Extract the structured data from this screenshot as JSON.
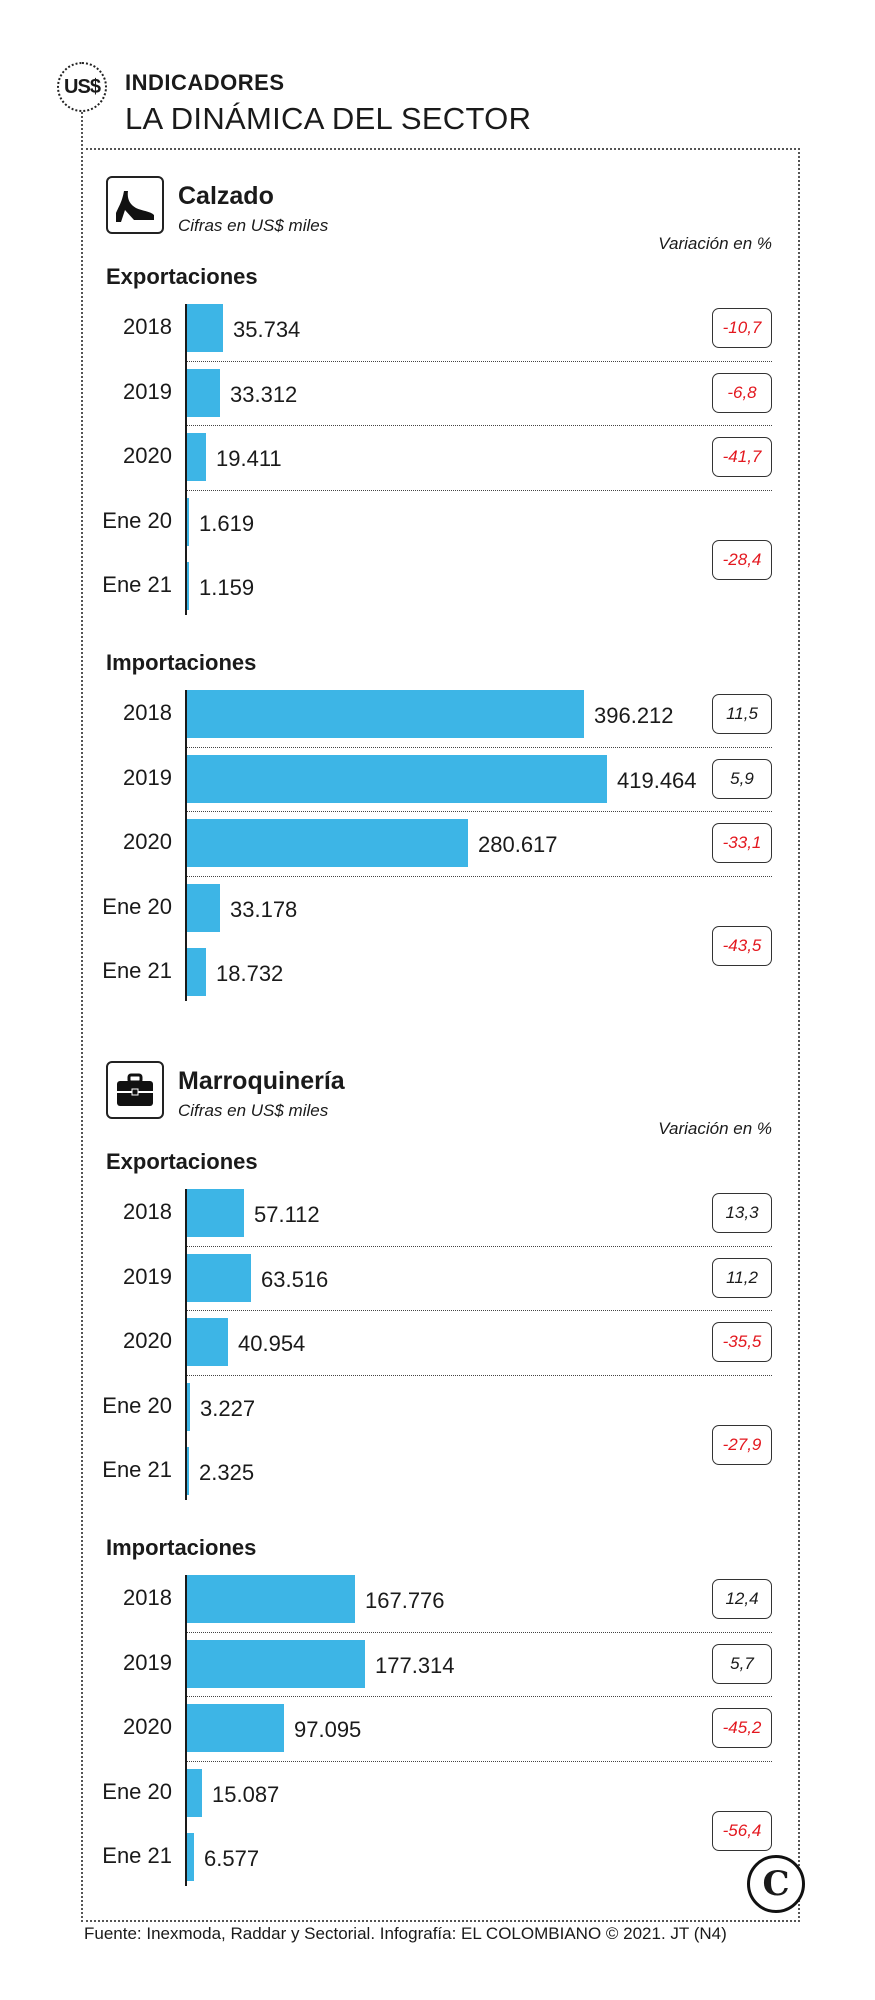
{
  "header": {
    "badge": "US$",
    "kicker": "INDICADORES",
    "headline": "LA DINÁMICA DEL SECTOR"
  },
  "variation_header": "Variación en %",
  "colors": {
    "bar": "#3db5e6",
    "negative": "#e3171e",
    "text": "#1a1a1a"
  },
  "sections": [
    {
      "title": "Calzado",
      "subtitle": "Cifras en US$ miles",
      "icon": "high-heel-shoe-icon",
      "groups": [
        {
          "label": "Exportaciones",
          "show_variation_header": true,
          "rows": [
            {
              "category": "2018",
              "value": 35734,
              "value_label": "35.734"
            },
            {
              "category": "2019",
              "value": 33312,
              "value_label": "33.312"
            },
            {
              "category": "2020",
              "value": 19411,
              "value_label": "19.411"
            },
            {
              "category": "Ene 20",
              "value": 1619,
              "value_label": "1.619"
            },
            {
              "category": "Ene 21",
              "value": 1159,
              "value_label": "1.159"
            }
          ],
          "variations": [
            {
              "text": "-10,7",
              "negative": true,
              "rows": [
                0
              ]
            },
            {
              "text": "-6,8",
              "negative": true,
              "rows": [
                1
              ]
            },
            {
              "text": "-41,7",
              "negative": true,
              "rows": [
                2
              ]
            },
            {
              "text": "-28,4",
              "negative": true,
              "rows": [
                3,
                4
              ]
            }
          ]
        },
        {
          "label": "Importaciones",
          "show_variation_header": false,
          "rows": [
            {
              "category": "2018",
              "value": 396212,
              "value_label": "396.212"
            },
            {
              "category": "2019",
              "value": 419464,
              "value_label": "419.464"
            },
            {
              "category": "2020",
              "value": 280617,
              "value_label": "280.617"
            },
            {
              "category": "Ene 20",
              "value": 33178,
              "value_label": "33.178"
            },
            {
              "category": "Ene 21",
              "value": 18732,
              "value_label": "18.732"
            }
          ],
          "variations": [
            {
              "text": "11,5",
              "negative": false,
              "rows": [
                0
              ]
            },
            {
              "text": "5,9",
              "negative": false,
              "rows": [
                1
              ]
            },
            {
              "text": "-33,1",
              "negative": true,
              "rows": [
                2
              ]
            },
            {
              "text": "-43,5",
              "negative": true,
              "rows": [
                3,
                4
              ]
            }
          ]
        }
      ]
    },
    {
      "title": "Marroquinería",
      "subtitle": "Cifras en US$ miles",
      "icon": "briefcase-icon",
      "groups": [
        {
          "label": "Exportaciones",
          "show_variation_header": true,
          "rows": [
            {
              "category": "2018",
              "value": 57112,
              "value_label": "57.112"
            },
            {
              "category": "2019",
              "value": 63516,
              "value_label": "63.516"
            },
            {
              "category": "2020",
              "value": 40954,
              "value_label": "40.954"
            },
            {
              "category": "Ene 20",
              "value": 3227,
              "value_label": "3.227"
            },
            {
              "category": "Ene 21",
              "value": 2325,
              "value_label": "2.325"
            }
          ],
          "variations": [
            {
              "text": "13,3",
              "negative": false,
              "rows": [
                0
              ]
            },
            {
              "text": "11,2",
              "negative": false,
              "rows": [
                1
              ]
            },
            {
              "text": "-35,5",
              "negative": true,
              "rows": [
                2
              ]
            },
            {
              "text": "-27,9",
              "negative": true,
              "rows": [
                3,
                4
              ]
            }
          ]
        },
        {
          "label": "Importaciones",
          "show_variation_header": false,
          "rows": [
            {
              "category": "2018",
              "value": 167776,
              "value_label": "167.776"
            },
            {
              "category": "2019",
              "value": 177314,
              "value_label": "177.314"
            },
            {
              "category": "2020",
              "value": 97095,
              "value_label": "97.095"
            },
            {
              "category": "Ene 20",
              "value": 15087,
              "value_label": "15.087"
            },
            {
              "category": "Ene 21",
              "value": 6577,
              "value_label": "6.577"
            }
          ],
          "variations": [
            {
              "text": "12,4",
              "negative": false,
              "rows": [
                0
              ]
            },
            {
              "text": "5,7",
              "negative": false,
              "rows": [
                1
              ]
            },
            {
              "text": "-45,2",
              "negative": true,
              "rows": [
                2
              ]
            },
            {
              "text": "-56,4",
              "negative": true,
              "rows": [
                3,
                4
              ]
            }
          ]
        }
      ]
    }
  ],
  "chart_data": [
    {
      "type": "bar",
      "title": "Calzado — Exportaciones",
      "categories": [
        "2018",
        "2019",
        "2020",
        "Ene 20",
        "Ene 21"
      ],
      "values": [
        35734,
        33312,
        19411,
        1619,
        1159
      ],
      "variation_pct": [
        -10.7,
        -6.8,
        -41.7,
        -28.4
      ]
    },
    {
      "type": "bar",
      "title": "Calzado — Importaciones",
      "categories": [
        "2018",
        "2019",
        "2020",
        "Ene 20",
        "Ene 21"
      ],
      "values": [
        396212,
        419464,
        280617,
        33178,
        18732
      ],
      "variation_pct": [
        11.5,
        5.9,
        -33.1,
        -43.5
      ]
    },
    {
      "type": "bar",
      "title": "Marroquinería — Exportaciones",
      "categories": [
        "2018",
        "2019",
        "2020",
        "Ene 20",
        "Ene 21"
      ],
      "values": [
        57112,
        63516,
        40954,
        3227,
        2325
      ],
      "variation_pct": [
        13.3,
        11.2,
        -35.5,
        -27.9
      ]
    },
    {
      "type": "bar",
      "title": "Marroquinería — Importaciones",
      "categories": [
        "2018",
        "2019",
        "2020",
        "Ene 20",
        "Ene 21"
      ],
      "values": [
        167776,
        177314,
        97095,
        15087,
        6577
      ],
      "variation_pct": [
        12.4,
        5.7,
        -45.2,
        -56.4
      ]
    }
  ],
  "logo": "C",
  "footer": "Fuente: Inexmoda, Raddar y Sectorial. Infografía: EL COLOMBIANO © 2021. JT (N4)"
}
